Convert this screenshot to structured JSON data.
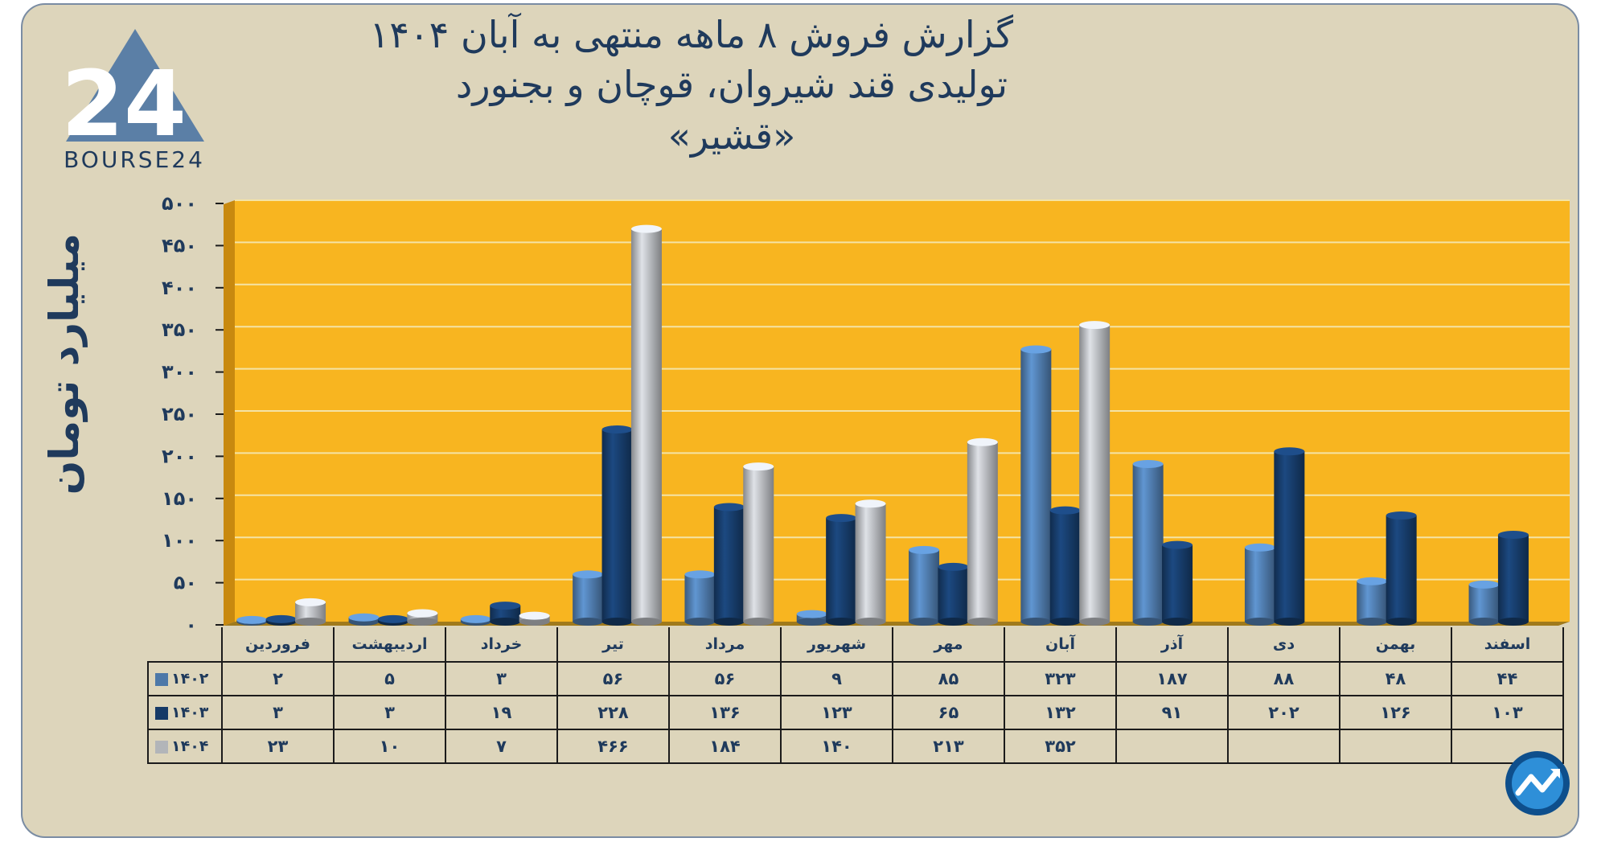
{
  "title_lines": [
    "گزارش  فروش ۸ ماهه منتهی به آبان ۱۴۰۴",
    "تولیدی قند شیروان، قوچان و بجنورد",
    "«قشیر»"
  ],
  "logo": {
    "text": "BOURSE24",
    "mark": "24"
  },
  "colors": {
    "s1402": "#4d78a8",
    "s1403": "#163a67",
    "s1404": "#b2b5b9",
    "plot_bg": "#f8b520",
    "card_bg": "#ddd5bb",
    "text": "#1f3a5c"
  },
  "chart_data": {
    "type": "bar",
    "ylabel": "میلیارد تومان",
    "ylim": [
      0,
      500
    ],
    "yticks": [
      0,
      50,
      100,
      150,
      200,
      250,
      300,
      350,
      400,
      450,
      500
    ],
    "ytick_labels": [
      "۰",
      "۵۰",
      "۱۰۰",
      "۱۵۰",
      "۲۰۰",
      "۲۵۰",
      "۳۰۰",
      "۳۵۰",
      "۴۰۰",
      "۴۵۰",
      "۵۰۰"
    ],
    "grid": true,
    "categories": [
      "فروردین",
      "اردیبهشت",
      "خرداد",
      "تیر",
      "مرداد",
      "شهریور",
      "مهر",
      "آبان",
      "آذر",
      "دی",
      "بهمن",
      "اسفند"
    ],
    "series": [
      {
        "name": "۱۴۰۲",
        "values": [
          2,
          5,
          3,
          56,
          56,
          9,
          85,
          323,
          187,
          88,
          48,
          44
        ],
        "labels": [
          "۲",
          "۵",
          "۳",
          "۵۶",
          "۵۶",
          "۹",
          "۸۵",
          "۳۲۳",
          "۱۸۷",
          "۸۸",
          "۴۸",
          "۴۴"
        ]
      },
      {
        "name": "۱۴۰۳",
        "values": [
          3,
          3,
          19,
          228,
          136,
          123,
          65,
          132,
          91,
          202,
          126,
          103
        ],
        "labels": [
          "۳",
          "۳",
          "۱۹",
          "۲۲۸",
          "۱۳۶",
          "۱۲۳",
          "۶۵",
          "۱۳۲",
          "۹۱",
          "۲۰۲",
          "۱۲۶",
          "۱۰۳"
        ]
      },
      {
        "name": "۱۴۰۴",
        "values": [
          23,
          10,
          7,
          466,
          184,
          140,
          213,
          352,
          null,
          null,
          null,
          null
        ],
        "labels": [
          "۲۳",
          "۱۰",
          "۷",
          "۴۶۶",
          "۱۸۴",
          "۱۴۰",
          "۲۱۳",
          "۳۵۲",
          "",
          "",
          "",
          ""
        ]
      }
    ]
  }
}
